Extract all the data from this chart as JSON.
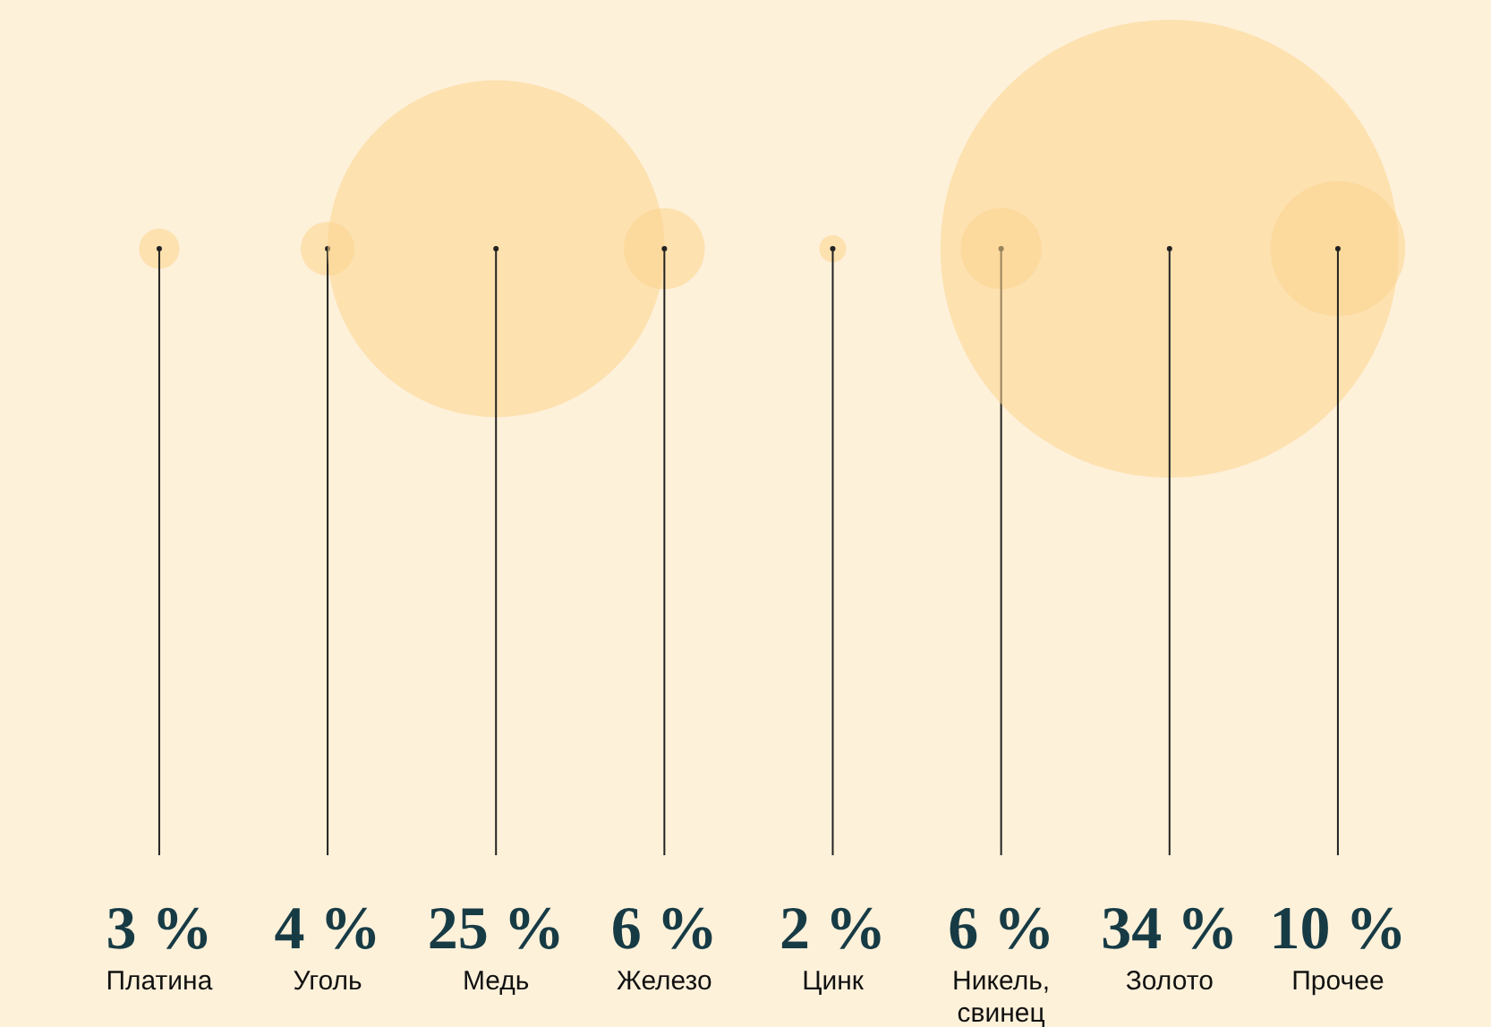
{
  "chart_data": {
    "type": "other",
    "categories": [
      "Платина",
      "Уголь",
      "Медь",
      "Железо",
      "Цинк",
      "Никель, свинец",
      "Золото",
      "Прочее"
    ],
    "values": [
      3,
      4,
      25,
      6,
      2,
      6,
      34,
      10
    ],
    "value_labels": [
      "3 %",
      "4 %",
      "25 %",
      "6 %",
      "2 %",
      "6 %",
      "34 %",
      "10 %"
    ]
  }
}
